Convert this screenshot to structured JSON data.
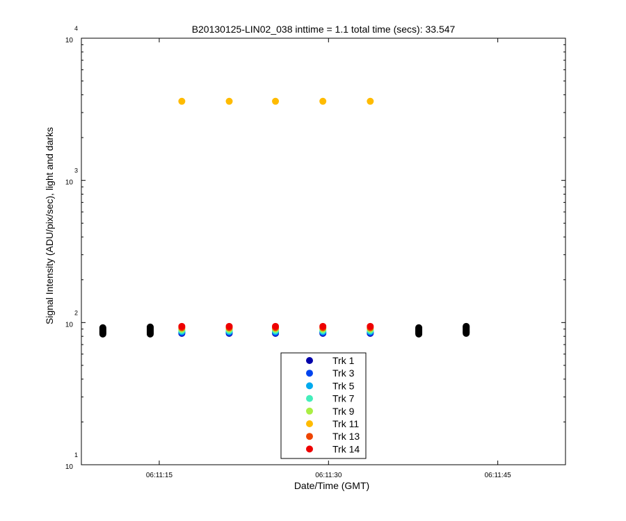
{
  "chart_data": {
    "type": "scatter",
    "title": "B20130125-LIN02_038 inttime = 1.1 total time (secs): 33.547",
    "xlabel": "Date/Time (GMT)",
    "ylabel": "Signal Intensity (ADU/pix/sec), light and darks",
    "xlim": [
      "06:11:08.1",
      "06:11:51.0"
    ],
    "ylim": [
      10,
      10000
    ],
    "yscale": "log",
    "grid": false,
    "legend_position": "bottom-center",
    "x_ticks": [
      "06:11:15",
      "06:11:30",
      "06:11:45"
    ],
    "y_ticks": [
      {
        "base": "10",
        "exp": "1"
      },
      {
        "base": "10",
        "exp": "2"
      },
      {
        "base": "10",
        "exp": "3"
      },
      {
        "base": "10",
        "exp": "4"
      }
    ],
    "light_times": [
      "06:11:17.0",
      "06:11:21.2",
      "06:11:25.3",
      "06:11:29.5",
      "06:11:33.7"
    ],
    "dark_times": [
      "06:11:10.0",
      "06:11:14.2",
      "06:11:38.0",
      "06:11:42.2"
    ],
    "series": [
      {
        "name": "Trk 1",
        "color": "#0000aa",
        "y": [
          84,
          84,
          84,
          84,
          84
        ]
      },
      {
        "name": "Trk 3",
        "color": "#0044ee",
        "y": [
          85,
          85,
          85,
          85,
          85
        ]
      },
      {
        "name": "Trk 5",
        "color": "#00aaee",
        "y": [
          86.5,
          86.5,
          86.5,
          86.5,
          86.5
        ]
      },
      {
        "name": "Trk 7",
        "color": "#44eebb",
        "y": [
          88,
          88,
          88,
          88,
          88
        ]
      },
      {
        "name": "Trk 9",
        "color": "#aaee44",
        "y": [
          90,
          90,
          90,
          90,
          90
        ]
      },
      {
        "name": "Trk 11",
        "color": "#ffbb00",
        "y": [
          3600,
          3600,
          3600,
          3600,
          3600
        ]
      },
      {
        "name": "Trk 13",
        "color": "#ee4400",
        "y": [
          92,
          92,
          92,
          92,
          92
        ]
      },
      {
        "name": "Trk 14",
        "color": "#ee0000",
        "y": [
          94,
          94,
          94,
          94,
          94
        ]
      }
    ],
    "darks": {
      "color": "#000000",
      "y": [
        [
          83,
          84,
          85,
          86,
          87,
          88,
          89,
          90,
          91,
          92
        ],
        [
          83,
          84,
          85,
          86,
          87,
          88,
          89,
          90,
          91,
          92,
          93
        ],
        [
          83,
          84,
          85,
          86,
          87,
          88,
          89,
          90,
          91,
          92
        ],
        [
          84,
          85,
          86,
          87,
          88,
          89,
          90,
          91,
          92,
          93,
          94
        ]
      ]
    }
  }
}
